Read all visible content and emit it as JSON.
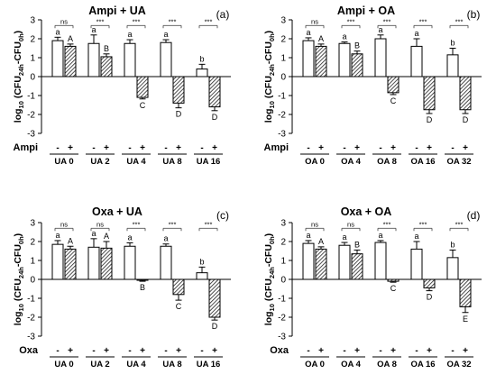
{
  "chart_data": [
    {
      "type": "bar",
      "title": "Ampi + UA",
      "panel_label": "(a)",
      "ylabel": "log10 (CFU24h-CFU0h)",
      "ylim": [
        -3,
        3
      ],
      "yticks": [
        -3,
        -2,
        -1,
        0,
        1,
        2,
        3
      ],
      "groups": [
        "UA 0",
        "UA 2",
        "UA 4",
        "UA 8",
        "UA 16"
      ],
      "treatment_label": "Ampi",
      "treatment_signs": [
        "-",
        "+"
      ],
      "series": [
        {
          "values": [
            1.9,
            1.75,
            1.75,
            1.8,
            0.4
          ],
          "errors": [
            0.18,
            0.45,
            0.2,
            0.15,
            0.25
          ],
          "letters": [
            "a",
            "a",
            "a",
            "a",
            "b"
          ],
          "pattern": "open"
        },
        {
          "values": [
            1.6,
            1.05,
            -1.1,
            -1.4,
            -1.6
          ],
          "errors": [
            0.12,
            0.15,
            0.08,
            0.25,
            0.2
          ],
          "letters": [
            "A",
            "B",
            "C",
            "D",
            "D"
          ],
          "pattern": "hatched"
        }
      ],
      "significance": [
        "ns",
        "***",
        "***",
        "***",
        "***"
      ]
    },
    {
      "type": "bar",
      "title": "Ampi + OA",
      "panel_label": "(b)",
      "ylabel": "log10 (CFU24h-CFU0h)",
      "ylim": [
        -3,
        3
      ],
      "yticks": [
        -3,
        -2,
        -1,
        0,
        1,
        2,
        3
      ],
      "groups": [
        "OA 0",
        "OA 4",
        "OA 8",
        "OA 16",
        "OA 32"
      ],
      "treatment_label": "Ampi",
      "treatment_signs": [
        "-",
        "+"
      ],
      "series": [
        {
          "values": [
            1.9,
            1.75,
            2.0,
            1.6,
            1.15
          ],
          "errors": [
            0.15,
            0.08,
            0.2,
            0.4,
            0.35
          ],
          "letters": [
            "a",
            "a",
            "a",
            "a",
            "b"
          ],
          "pattern": "open"
        },
        {
          "values": [
            1.6,
            1.2,
            -0.85,
            -1.75,
            -1.75
          ],
          "errors": [
            0.12,
            0.15,
            0.1,
            0.2,
            0.2
          ],
          "letters": [
            "A",
            "B",
            "C",
            "D",
            "D"
          ],
          "pattern": "hatched"
        }
      ],
      "significance": [
        "ns",
        "***",
        "***",
        "***",
        "***"
      ]
    },
    {
      "type": "bar",
      "title": "Oxa + UA",
      "panel_label": "(c)",
      "ylabel": "log10 (CFU24h-CFU0h)",
      "ylim": [
        -3,
        3
      ],
      "yticks": [
        -3,
        -2,
        -1,
        0,
        1,
        2,
        3
      ],
      "groups": [
        "UA 0",
        "UA 2",
        "UA 4",
        "UA 8",
        "UA 16"
      ],
      "treatment_label": "Oxa",
      "treatment_signs": [
        "-",
        "+"
      ],
      "series": [
        {
          "values": [
            1.85,
            1.7,
            1.75,
            1.75,
            0.35
          ],
          "errors": [
            0.2,
            0.45,
            0.18,
            0.12,
            0.3
          ],
          "letters": [
            "a",
            "a",
            "a",
            "a",
            "b"
          ],
          "pattern": "open"
        },
        {
          "values": [
            1.6,
            1.65,
            -0.05,
            -0.8,
            -2.0
          ],
          "errors": [
            0.15,
            0.35,
            0.05,
            0.3,
            0.15
          ],
          "letters": [
            "A",
            "A",
            "B",
            "C",
            "D"
          ],
          "pattern": "hatched"
        }
      ],
      "significance": [
        "ns",
        "ns",
        "***",
        "***",
        "***"
      ]
    },
    {
      "type": "bar",
      "title": "Oxa + OA",
      "panel_label": "(d)",
      "ylabel": "log10 (CFU24h-CFU0h)",
      "ylim": [
        -3,
        3
      ],
      "yticks": [
        -3,
        -2,
        -1,
        0,
        1,
        2,
        3
      ],
      "groups": [
        "OA 0",
        "OA 4",
        "OA 8",
        "OA 16",
        "OA 32"
      ],
      "treatment_label": "Oxa",
      "treatment_signs": [
        "-",
        "+"
      ],
      "series": [
        {
          "values": [
            1.9,
            1.8,
            1.95,
            1.6,
            1.15
          ],
          "errors": [
            0.15,
            0.15,
            0.1,
            0.4,
            0.4
          ],
          "letters": [
            "a",
            "a",
            "a",
            "a",
            "b"
          ],
          "pattern": "open"
        },
        {
          "values": [
            1.6,
            1.35,
            -0.1,
            -0.45,
            -1.45
          ],
          "errors": [
            0.12,
            0.2,
            0.05,
            0.15,
            0.3
          ],
          "letters": [
            "A",
            "B",
            "C",
            "D",
            "E"
          ],
          "pattern": "hatched"
        }
      ],
      "significance": [
        "ns",
        "ns",
        "***",
        "***",
        "***"
      ]
    }
  ]
}
